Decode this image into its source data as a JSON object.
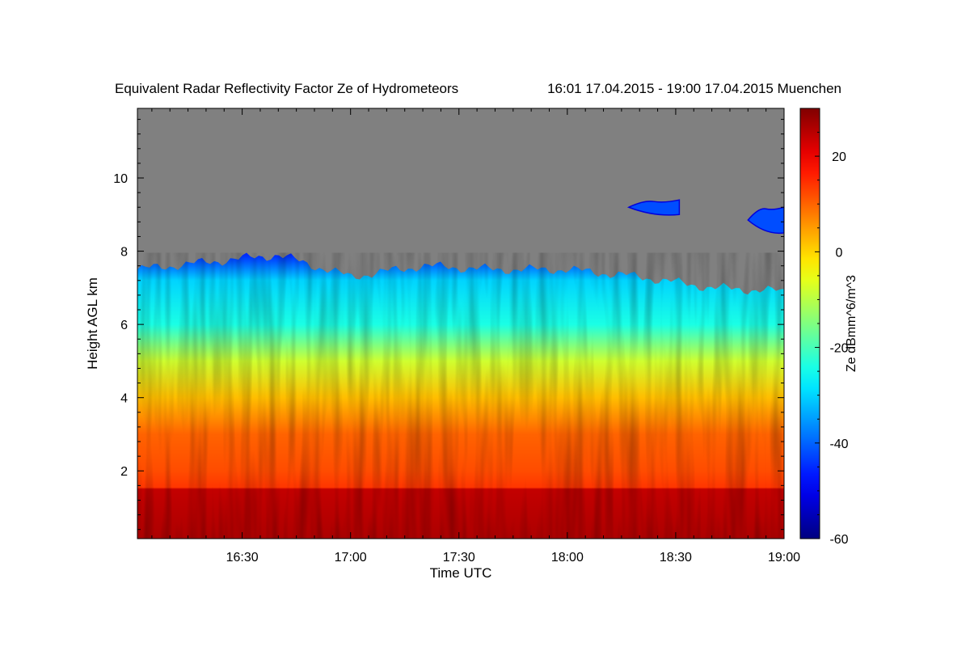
{
  "chart_data": {
    "type": "heatmap",
    "title": "Equivalent Radar Reflectivity Factor Ze of Hydrometeors",
    "subtitle": "16:01 17.04.2015 - 19:00 17.04.2015 Muenchen",
    "xlabel": "Time UTC",
    "ylabel": "Height AGL km",
    "xlim": [
      "16:01",
      "19:00"
    ],
    "ylim": [
      0.15,
      11.9
    ],
    "x_ticks": [
      "16:30",
      "17:00",
      "17:30",
      "18:00",
      "18:30",
      "19:00"
    ],
    "y_ticks": [
      2,
      4,
      6,
      8,
      10
    ],
    "colorbar": {
      "label": "Ze dBmm^6/m^3",
      "range": [
        -60,
        30
      ],
      "ticks": [
        20,
        0,
        -20,
        -40,
        -60
      ],
      "colormap": "jet",
      "no_signal_color": "#808080"
    },
    "features": {
      "cloud_top_km": [
        {
          "time": "16:01",
          "height": 7.5
        },
        {
          "time": "16:20",
          "height": 7.7
        },
        {
          "time": "16:40",
          "height": 7.9
        },
        {
          "time": "17:00",
          "height": 7.3
        },
        {
          "time": "17:20",
          "height": 7.6
        },
        {
          "time": "17:40",
          "height": 7.5
        },
        {
          "time": "18:00",
          "height": 7.5
        },
        {
          "time": "18:20",
          "height": 7.3
        },
        {
          "time": "18:40",
          "height": 7.0
        },
        {
          "time": "19:00",
          "height": 6.9
        }
      ],
      "upper_cloud_patches": [
        {
          "start": "18:17",
          "end": "18:31",
          "bottom_km": 9.0,
          "top_km": 9.4
        },
        {
          "start": "18:50",
          "end": "19:00",
          "bottom_km": 8.5,
          "top_km": 9.2
        }
      ],
      "melting_layer_top_km": 1.5
    }
  }
}
